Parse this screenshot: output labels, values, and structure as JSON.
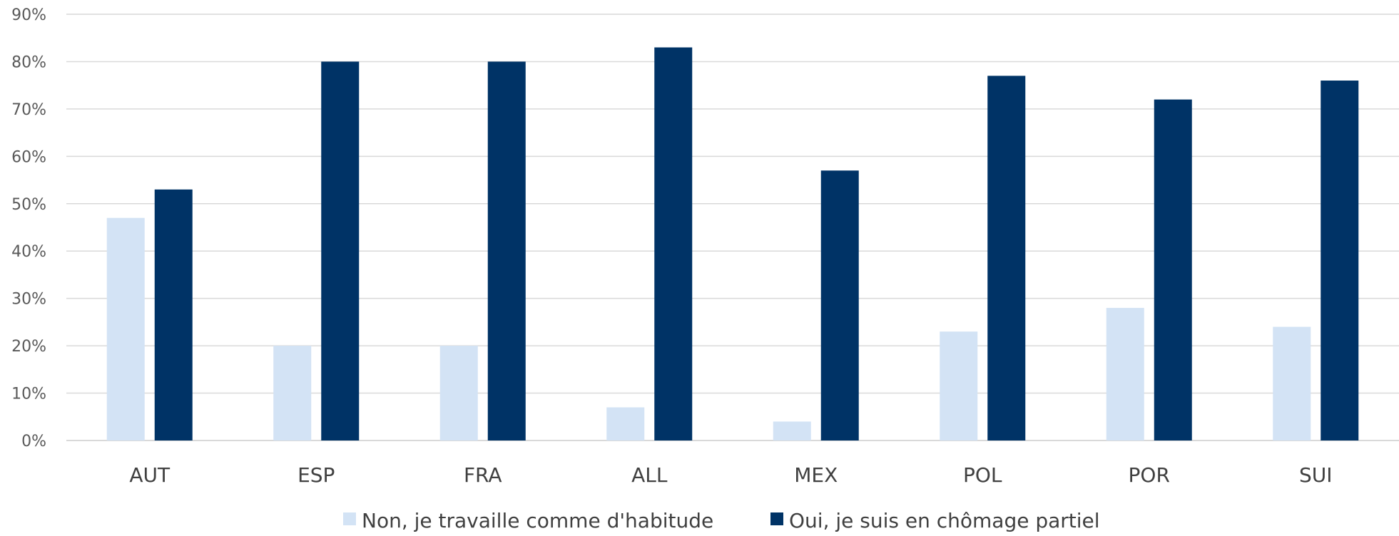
{
  "chart_data": {
    "type": "bar",
    "categories": [
      "AUT",
      "ESP",
      "FRA",
      "ALL",
      "MEX",
      "POL",
      "POR",
      "SUI"
    ],
    "series": [
      {
        "name": "Non, je travaille comme d'habitude",
        "color": "#d3e3f5",
        "values": [
          47,
          20,
          20,
          7,
          4,
          23,
          28,
          24
        ]
      },
      {
        "name": "Oui, je suis en chômage partiel",
        "color": "#003366",
        "values": [
          53,
          80,
          80,
          83,
          57,
          77,
          72,
          76
        ]
      }
    ],
    "ylim": [
      0,
      90
    ],
    "yticks": [
      "0%",
      "10%",
      "20%",
      "30%",
      "40%",
      "50%",
      "60%",
      "70%",
      "80%",
      "90%"
    ],
    "grid": true,
    "legend_position": "bottom",
    "gridline_color": "#d9d9d9"
  }
}
